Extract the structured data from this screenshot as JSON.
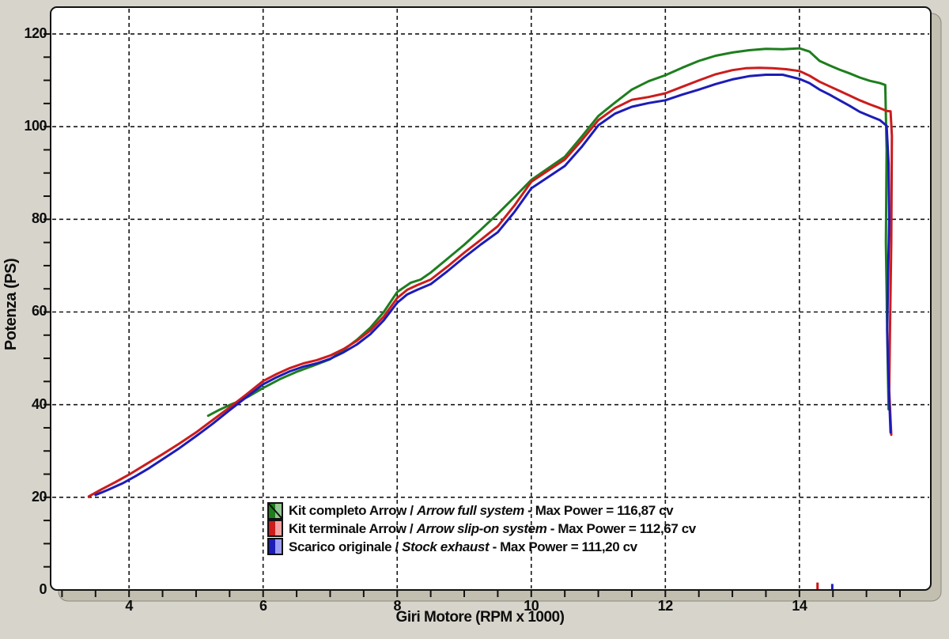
{
  "figure": {
    "outer_bg": "#d7d4cb",
    "plot_bg": "#ffffff",
    "frame_gray": "#c2bfb1",
    "frame_edge": "#8b887b",
    "grid_color": "#161616",
    "text_color": "#0d0d0d"
  },
  "chart_data": {
    "type": "line",
    "title": "",
    "xlabel": "Giri Motore (RPM x 1000)",
    "ylabel": "Potenza (PS)",
    "xlim": [
      2.83,
      15.96
    ],
    "ylim": [
      0,
      125.8
    ],
    "x_major_ticks": [
      4,
      6,
      8,
      10,
      12,
      14
    ],
    "x_minor_step": 0.5,
    "x_minor_range": [
      3.0,
      15.5
    ],
    "y_major_ticks": [
      0,
      20,
      40,
      60,
      80,
      100,
      120
    ],
    "y_minor_step": 5,
    "grid": "dashed, both axes at major ticks",
    "legend_position": "inside bottom-center",
    "series": [
      {
        "name_it": "Kit completo Arrow",
        "name_en": "Arrow full system",
        "max_power_cv": 116.87,
        "color": "#1e7e1e",
        "legend_light": "#93c793",
        "legend_diagonal": true,
        "points": [
          [
            5.18,
            37.6
          ],
          [
            5.35,
            38.9
          ],
          [
            5.5,
            39.9
          ],
          [
            5.65,
            40.8
          ],
          [
            5.8,
            41.9
          ],
          [
            6.0,
            43.6
          ],
          [
            6.25,
            45.5
          ],
          [
            6.5,
            47.1
          ],
          [
            6.75,
            48.4
          ],
          [
            7.0,
            49.8
          ],
          [
            7.2,
            51.8
          ],
          [
            7.4,
            54.0
          ],
          [
            7.6,
            56.6
          ],
          [
            7.8,
            60.0
          ],
          [
            8.0,
            64.3
          ],
          [
            8.2,
            66.3
          ],
          [
            8.35,
            67.0
          ],
          [
            8.5,
            68.5
          ],
          [
            8.75,
            71.5
          ],
          [
            9.0,
            74.5
          ],
          [
            9.25,
            77.8
          ],
          [
            9.5,
            81.2
          ],
          [
            9.75,
            84.8
          ],
          [
            10.0,
            88.5
          ],
          [
            10.25,
            91.0
          ],
          [
            10.5,
            93.5
          ],
          [
            10.75,
            97.8
          ],
          [
            11.0,
            102.3
          ],
          [
            11.25,
            105.2
          ],
          [
            11.5,
            108.0
          ],
          [
            11.75,
            109.8
          ],
          [
            12.0,
            111.1
          ],
          [
            12.25,
            112.7
          ],
          [
            12.5,
            114.2
          ],
          [
            12.75,
            115.3
          ],
          [
            13.0,
            116.0
          ],
          [
            13.25,
            116.5
          ],
          [
            13.5,
            116.8
          ],
          [
            13.75,
            116.7
          ],
          [
            14.0,
            116.9
          ],
          [
            14.15,
            116.2
          ],
          [
            14.3,
            114.2
          ],
          [
            14.45,
            113.2
          ],
          [
            14.6,
            112.3
          ],
          [
            14.75,
            111.5
          ],
          [
            14.9,
            110.6
          ],
          [
            15.05,
            109.9
          ],
          [
            15.2,
            109.4
          ],
          [
            15.28,
            109.0
          ],
          [
            15.3,
            95.0
          ],
          [
            15.29,
            75.0
          ],
          [
            15.31,
            55.0
          ],
          [
            15.33,
            39.0
          ]
        ]
      },
      {
        "name_it": "Kit terminale Arrow",
        "name_en": "Arrow slip-on system",
        "max_power_cv": 112.67,
        "color": "#cc1c1c",
        "legend_light": "#f6a2a2",
        "legend_diagonal": false,
        "points": [
          [
            3.4,
            20.2
          ],
          [
            3.6,
            21.8
          ],
          [
            3.8,
            23.3
          ],
          [
            4.0,
            24.9
          ],
          [
            4.25,
            27.1
          ],
          [
            4.5,
            29.3
          ],
          [
            4.75,
            31.6
          ],
          [
            5.0,
            34.0
          ],
          [
            5.25,
            36.7
          ],
          [
            5.5,
            39.4
          ],
          [
            5.75,
            42.2
          ],
          [
            6.0,
            45.1
          ],
          [
            6.2,
            46.6
          ],
          [
            6.4,
            47.9
          ],
          [
            6.6,
            48.9
          ],
          [
            6.8,
            49.6
          ],
          [
            7.0,
            50.6
          ],
          [
            7.2,
            52.0
          ],
          [
            7.4,
            53.8
          ],
          [
            7.6,
            56.0
          ],
          [
            7.8,
            59.0
          ],
          [
            8.0,
            63.0
          ],
          [
            8.15,
            64.8
          ],
          [
            8.3,
            65.8
          ],
          [
            8.5,
            67.0
          ],
          [
            8.75,
            69.8
          ],
          [
            9.0,
            72.8
          ],
          [
            9.25,
            75.6
          ],
          [
            9.5,
            78.5
          ],
          [
            9.75,
            83.0
          ],
          [
            10.0,
            88.1
          ],
          [
            10.25,
            90.5
          ],
          [
            10.5,
            92.9
          ],
          [
            10.75,
            97.0
          ],
          [
            11.0,
            101.4
          ],
          [
            11.25,
            104.0
          ],
          [
            11.5,
            105.8
          ],
          [
            11.75,
            106.4
          ],
          [
            12.0,
            107.2
          ],
          [
            12.25,
            108.6
          ],
          [
            12.5,
            110.0
          ],
          [
            12.75,
            111.3
          ],
          [
            13.0,
            112.2
          ],
          [
            13.2,
            112.6
          ],
          [
            13.4,
            112.7
          ],
          [
            13.6,
            112.6
          ],
          [
            13.8,
            112.4
          ],
          [
            14.0,
            112.0
          ],
          [
            14.15,
            111.0
          ],
          [
            14.3,
            109.7
          ],
          [
            14.45,
            108.7
          ],
          [
            14.6,
            107.7
          ],
          [
            14.75,
            106.7
          ],
          [
            14.9,
            105.7
          ],
          [
            15.05,
            104.8
          ],
          [
            15.2,
            104.0
          ],
          [
            15.3,
            103.4
          ],
          [
            15.36,
            103.3
          ],
          [
            15.38,
            98.0
          ],
          [
            15.37,
            75.0
          ],
          [
            15.35,
            55.0
          ],
          [
            15.34,
            43.0
          ],
          [
            15.37,
            33.5
          ]
        ]
      },
      {
        "name_it": "Scarico originale",
        "name_en": "Stock exhaust",
        "max_power_cv": 111.2,
        "color": "#1c1cb8",
        "legend_light": "#9d9df2",
        "legend_diagonal": false,
        "points": [
          [
            3.5,
            20.5
          ],
          [
            3.7,
            21.7
          ],
          [
            3.9,
            23.0
          ],
          [
            4.1,
            24.6
          ],
          [
            4.3,
            26.3
          ],
          [
            4.5,
            28.2
          ],
          [
            4.75,
            30.6
          ],
          [
            5.0,
            33.2
          ],
          [
            5.25,
            35.9
          ],
          [
            5.5,
            38.8
          ],
          [
            5.75,
            41.6
          ],
          [
            6.0,
            44.4
          ],
          [
            6.2,
            45.9
          ],
          [
            6.4,
            47.2
          ],
          [
            6.6,
            48.2
          ],
          [
            6.8,
            48.9
          ],
          [
            7.0,
            49.9
          ],
          [
            7.2,
            51.3
          ],
          [
            7.4,
            53.0
          ],
          [
            7.6,
            55.2
          ],
          [
            7.8,
            58.2
          ],
          [
            8.0,
            62.0
          ],
          [
            8.15,
            63.8
          ],
          [
            8.3,
            64.8
          ],
          [
            8.5,
            66.0
          ],
          [
            8.75,
            68.8
          ],
          [
            9.0,
            71.8
          ],
          [
            9.25,
            74.6
          ],
          [
            9.5,
            77.2
          ],
          [
            9.75,
            81.6
          ],
          [
            10.0,
            86.7
          ],
          [
            10.25,
            89.1
          ],
          [
            10.5,
            91.5
          ],
          [
            10.75,
            95.6
          ],
          [
            11.0,
            100.3
          ],
          [
            11.25,
            102.8
          ],
          [
            11.5,
            104.3
          ],
          [
            11.75,
            105.1
          ],
          [
            12.0,
            105.7
          ],
          [
            12.25,
            106.9
          ],
          [
            12.5,
            108.0
          ],
          [
            12.75,
            109.2
          ],
          [
            13.0,
            110.2
          ],
          [
            13.25,
            110.9
          ],
          [
            13.5,
            111.2
          ],
          [
            13.75,
            111.2
          ],
          [
            14.0,
            110.3
          ],
          [
            14.15,
            109.4
          ],
          [
            14.3,
            108.0
          ],
          [
            14.45,
            106.9
          ],
          [
            14.6,
            105.7
          ],
          [
            14.75,
            104.5
          ],
          [
            14.9,
            103.2
          ],
          [
            15.05,
            102.3
          ],
          [
            15.2,
            101.4
          ],
          [
            15.3,
            100.2
          ],
          [
            15.33,
            92.0
          ],
          [
            15.34,
            80.0
          ],
          [
            15.32,
            65.0
          ],
          [
            15.31,
            56.0
          ],
          [
            15.33,
            45.0
          ],
          [
            15.36,
            34.0
          ]
        ]
      }
    ],
    "stray_marks": [
      {
        "rpm": 14.27,
        "ps": 1.6,
        "color": "#cc1616"
      },
      {
        "rpm": 14.49,
        "ps": 1.3,
        "color": "#1f1fb4"
      }
    ]
  },
  "legend": {
    "rows": [
      {
        "pre": "Kit completo Arrow / ",
        "italic": "Arrow full system",
        "post": " - Max Power = 116,87 cv"
      },
      {
        "pre": "Kit terminale Arrow / ",
        "italic": "Arrow slip-on system",
        "post": " - Max Power = 112,67 cv"
      },
      {
        "pre": "Scarico originale / ",
        "italic": "Stock exhaust",
        "post": " - Max Power = 111,20 cv"
      }
    ]
  }
}
